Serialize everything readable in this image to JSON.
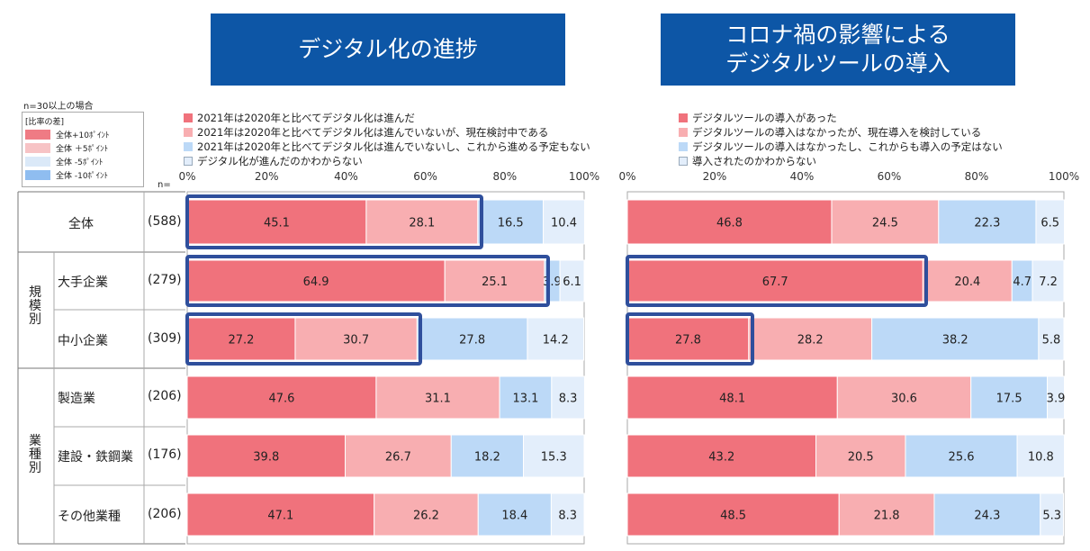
{
  "titles": {
    "left": "デジタル化の進捗",
    "right_line1": "コロナ禍の影響による",
    "right_line2": "デジタルツールの導入"
  },
  "sample_note": "n=30以上の場合",
  "n_label": "n=",
  "diff_key": {
    "title": "[比率の差]",
    "items": [
      "全体+10ﾎﾟｲﾝﾄ",
      "全体 ＋5ﾎﾟｲﾝﾄ",
      "全体 -5ﾎﾟｲﾝﾄ",
      "全体 -10ﾎﾟｲﾝﾄ"
    ],
    "colors": [
      "#ef7b84",
      "#f7c3c5",
      "#dbe9f8",
      "#8fbdf0"
    ]
  },
  "axis_ticks": [
    "0%",
    "20%",
    "40%",
    "60%",
    "80%",
    "100%"
  ],
  "rows": [
    {
      "label": "全体",
      "group": "",
      "n": "(588)"
    },
    {
      "label": "大手企業",
      "group": "規模別",
      "n": "(279)"
    },
    {
      "label": "中小企業",
      "group": "規模別",
      "n": "(309)"
    },
    {
      "label": "製造業",
      "group": "業種別",
      "n": "(206)"
    },
    {
      "label": "建設・鉄鋼業",
      "group": "業種別",
      "n": "(176)"
    },
    {
      "label": "その他業種",
      "group": "業種別",
      "n": "(206)"
    }
  ],
  "groups": {
    "scale": "規模別",
    "industry": "業種別"
  },
  "chart_data": [
    {
      "type": "bar",
      "stacked": true,
      "orientation": "horizontal",
      "title": "デジタル化の進捗",
      "xlabel": "",
      "xlim": [
        0,
        100
      ],
      "categories": [
        "全体",
        "大手企業",
        "中小企業",
        "製造業",
        "建設・鉄鋼業",
        "その他業種"
      ],
      "series": [
        {
          "name": "2021年は2020年と比べてデジタル化は進んだ",
          "color": "#f0727c",
          "values": [
            45.1,
            64.9,
            27.2,
            47.6,
            39.8,
            47.1
          ]
        },
        {
          "name": "2021年は2020年と比べてデジタル化は進んでいないが、現在検討中である",
          "color": "#f8aeb1",
          "values": [
            28.1,
            25.1,
            30.7,
            31.1,
            26.7,
            26.2
          ]
        },
        {
          "name": "2021年は2020年と比べてデジタル化は進んでいないし、これから進める予定もない",
          "color": "#bcd9f7",
          "values": [
            16.5,
            3.9,
            27.8,
            13.1,
            18.2,
            18.4
          ]
        },
        {
          "name": "デジタル化が進んだのかわからない",
          "color": "#e3eefb",
          "values": [
            10.4,
            6.1,
            14.2,
            8.3,
            15.3,
            8.3
          ]
        }
      ],
      "labels": [
        [
          "45.1",
          "28.1",
          "16.5",
          "10.4"
        ],
        [
          "64.9",
          "25.1",
          "3.9",
          "6.1"
        ],
        [
          "27.2",
          "30.7",
          "27.8",
          "14.2"
        ],
        [
          "47.6",
          "31.1",
          "13.1",
          "8.3"
        ],
        [
          "39.8",
          "26.7",
          "18.2",
          "15.3"
        ],
        [
          "47.1",
          "26.2",
          "18.4",
          "8.3"
        ]
      ],
      "highlights": [
        {
          "row": 0,
          "segments": 2
        },
        {
          "row": 1,
          "segments": 2
        },
        {
          "row": 2,
          "segments": 2
        }
      ]
    },
    {
      "type": "bar",
      "stacked": true,
      "orientation": "horizontal",
      "title": "コロナ禍の影響によるデジタルツールの導入",
      "xlabel": "",
      "xlim": [
        0,
        100
      ],
      "categories": [
        "全体",
        "大手企業",
        "中小企業",
        "製造業",
        "建設・鉄鋼業",
        "その他業種"
      ],
      "series": [
        {
          "name": "デジタルツールの導入があった",
          "color": "#f0727c",
          "values": [
            46.8,
            67.7,
            27.8,
            48.1,
            43.2,
            48.5
          ]
        },
        {
          "name": "デジタルツールの導入はなかったが、現在導入を検討している",
          "color": "#f8aeb1",
          "values": [
            24.5,
            20.4,
            28.2,
            30.6,
            20.5,
            21.8
          ]
        },
        {
          "name": "デジタルツールの導入はなかったし、これからも導入の予定はない",
          "color": "#bcd9f7",
          "values": [
            22.3,
            4.7,
            38.2,
            17.5,
            25.6,
            24.3
          ]
        },
        {
          "name": "導入されたのかわからない",
          "color": "#e3eefb",
          "values": [
            6.5,
            7.2,
            5.8,
            3.9,
            10.8,
            5.3
          ]
        }
      ],
      "labels": [
        [
          "46.8",
          "24.5",
          "22.3",
          "6.5"
        ],
        [
          "67.7",
          "20.4",
          "4.7",
          "7.2"
        ],
        [
          "27.8",
          "28.2",
          "38.2",
          "5.8"
        ],
        [
          "48.1",
          "30.6",
          "17.5",
          "3.9"
        ],
        [
          "43.2",
          "20.5",
          "25.6",
          "10.8"
        ],
        [
          "48.5",
          "21.8",
          "24.3",
          "5.3"
        ]
      ],
      "highlights": [
        {
          "row": 1,
          "segments": 1
        },
        {
          "row": 2,
          "segments": 1
        }
      ]
    }
  ]
}
